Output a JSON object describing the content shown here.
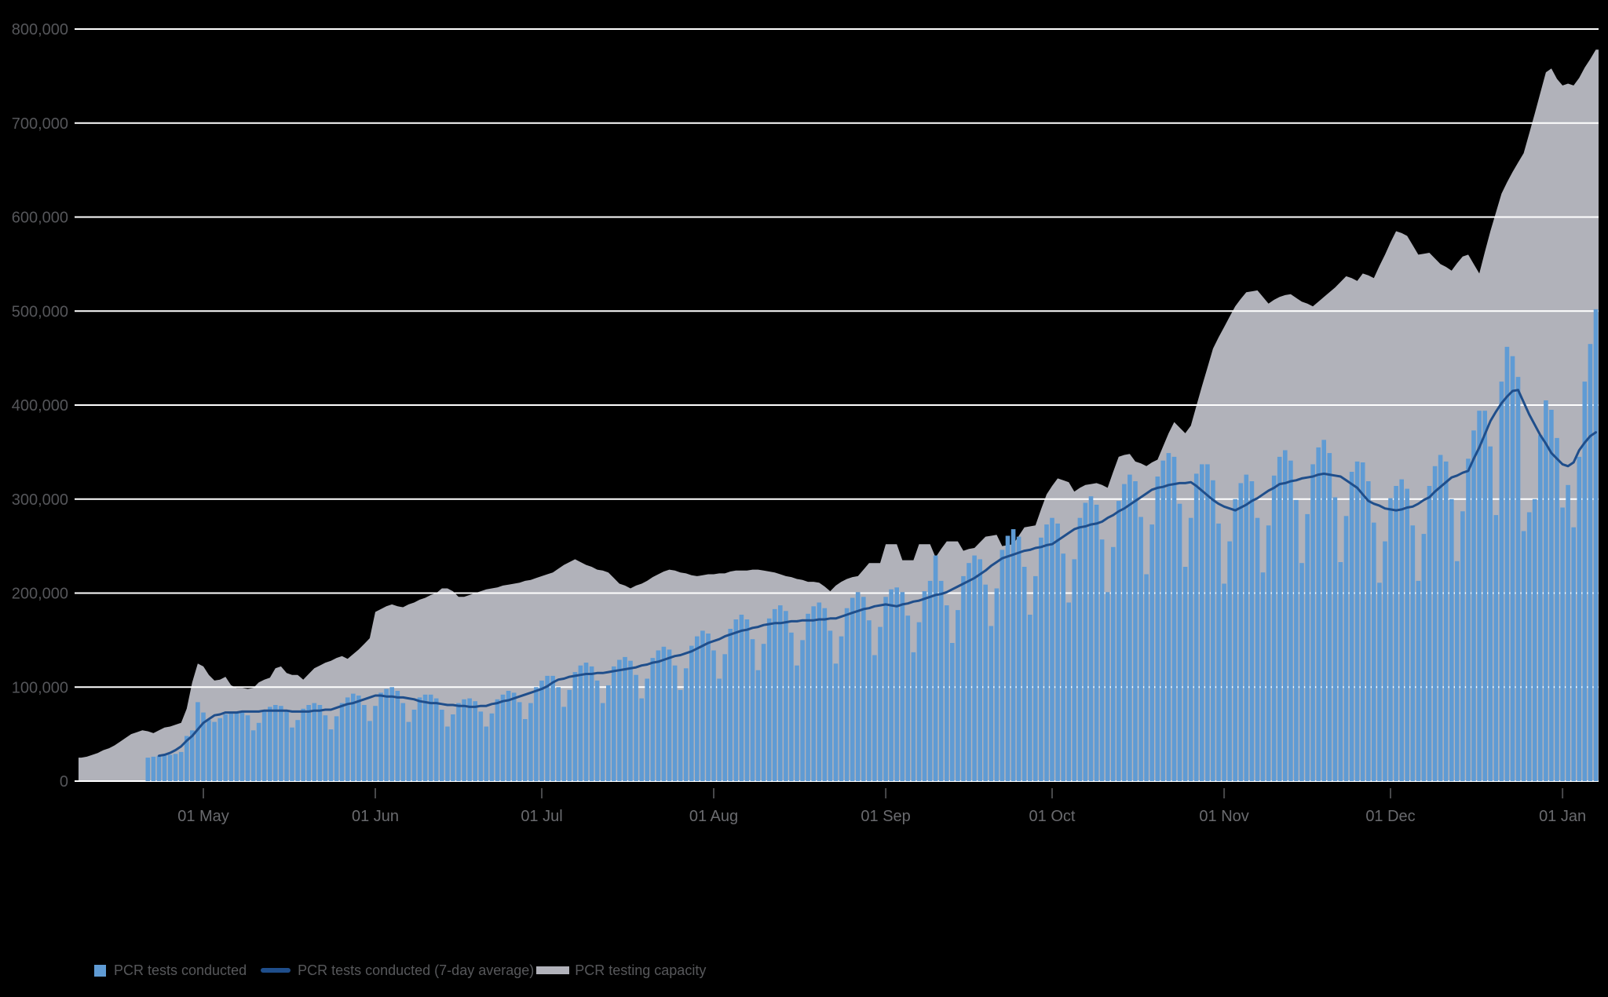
{
  "chart": {
    "colors": {
      "background": "#000000",
      "grid": "#ffffff",
      "y_axis_label": "#55565a",
      "x_axis_label": "#6a6b6f",
      "x_tick_mark": "#47484a",
      "legend_text": "#57585b",
      "bar": "#5f9bd4",
      "line": "#1f4e8b",
      "area": "#b1b2ba"
    },
    "legend": {
      "position": "bottom-left",
      "items": [
        "PCR tests conducted",
        "PCR tests conducted (7-day average)",
        "PCR testing capacity"
      ]
    }
  },
  "chart_data": {
    "type": "combo",
    "subtypes": [
      "bar",
      "line",
      "area"
    ],
    "title": "",
    "xlabel": "",
    "ylabel": "",
    "ylim": [
      0,
      800000
    ],
    "grid": "horizontal-white",
    "x_encoding": {
      "start_date": "2020-04-09",
      "step_days": 1,
      "count": 274,
      "end_date": "2021-01-07"
    },
    "y_ticks": [
      {
        "v": 0,
        "label": "0"
      },
      {
        "v": 100000,
        "label": "100,000"
      },
      {
        "v": 200000,
        "label": "200,000"
      },
      {
        "v": 300000,
        "label": "300,000"
      },
      {
        "v": 400000,
        "label": "400,000"
      },
      {
        "v": 500000,
        "label": "500,000"
      },
      {
        "v": 600000,
        "label": "600,000"
      },
      {
        "v": 700000,
        "label": "700,000"
      },
      {
        "v": 800000,
        "label": "800,000"
      }
    ],
    "x_ticks": [
      {
        "day": 22,
        "label": "01 May"
      },
      {
        "day": 53,
        "label": "01 Jun"
      },
      {
        "day": 83,
        "label": "01 Jul"
      },
      {
        "day": 114,
        "label": "01 Aug"
      },
      {
        "day": 145,
        "label": "01 Sep"
      },
      {
        "day": 175,
        "label": "01 Oct"
      },
      {
        "day": 206,
        "label": "01 Nov"
      },
      {
        "day": 236,
        "label": "01 Dec"
      },
      {
        "day": 267,
        "label": "01 Jan"
      }
    ],
    "series": [
      {
        "name": "PCR tests conducted",
        "type": "bar",
        "color": "#5f9bd4",
        "values": [
          null,
          null,
          null,
          null,
          null,
          null,
          null,
          null,
          null,
          null,
          null,
          null,
          25000,
          26000,
          27000,
          28000,
          28000,
          29000,
          31000,
          48000,
          54000,
          84000,
          73000,
          65000,
          63000,
          67000,
          71000,
          73000,
          74000,
          73000,
          70000,
          54000,
          62000,
          75000,
          79000,
          81000,
          80000,
          75000,
          57000,
          65000,
          77000,
          81000,
          83000,
          81000,
          70000,
          55000,
          69000,
          83000,
          89000,
          93000,
          91000,
          81000,
          64000,
          80000,
          94000,
          98000,
          100000,
          96000,
          83000,
          63000,
          76000,
          89000,
          92000,
          92000,
          88000,
          76000,
          58000,
          71000,
          83000,
          87000,
          88000,
          85000,
          74000,
          58000,
          72000,
          87000,
          92000,
          96000,
          94000,
          84000,
          66000,
          83000,
          100000,
          107000,
          112000,
          112000,
          100000,
          79000,
          97000,
          116000,
          123000,
          126000,
          122000,
          107000,
          83000,
          102000,
          122000,
          129000,
          132000,
          128000,
          113000,
          88000,
          109000,
          131000,
          139000,
          143000,
          140000,
          123000,
          97000,
          120000,
          144000,
          154000,
          160000,
          157000,
          139000,
          109000,
          135000,
          162000,
          172000,
          177000,
          172000,
          151000,
          118000,
          146000,
          173000,
          183000,
          187000,
          181000,
          158000,
          123000,
          150000,
          178000,
          186000,
          190000,
          184000,
          160000,
          125000,
          154000,
          184000,
          195000,
          201000,
          196000,
          171000,
          134000,
          164000,
          196000,
          204000,
          206000,
          201000,
          176000,
          137000,
          169000,
          202000,
          213000,
          240000,
          213000,
          187000,
          147000,
          182000,
          218000,
          232000,
          240000,
          236000,
          209000,
          165000,
          205000,
          246000,
          261000,
          268000,
          260000,
          228000,
          177000,
          218000,
          259000,
          273000,
          280000,
          274000,
          242000,
          190000,
          236000,
          280000,
          296000,
          303000,
          294000,
          257000,
          201000,
          249000,
          298000,
          316000,
          326000,
          319000,
          281000,
          220000,
          273000,
          324000,
          341000,
          349000,
          345000,
          295000,
          228000,
          280000,
          327000,
          337000,
          337000,
          320000,
          274000,
          210000,
          255000,
          300000,
          317000,
          326000,
          319000,
          280000,
          222000,
          272000,
          325000,
          345000,
          352000,
          341000,
          299000,
          232000,
          284000,
          337000,
          355000,
          363000,
          349000,
          302000,
          233000,
          282000,
          329000,
          340000,
          339000,
          319000,
          275000,
          211000,
          255000,
          301000,
          314000,
          321000,
          311000,
          272000,
          213000,
          263000,
          314000,
          335000,
          347000,
          340000,
          300000,
          234000,
          287000,
          343000,
          373000,
          394000,
          394000,
          356000,
          283000,
          425000,
          462000,
          452000,
          430000,
          266000,
          286000,
          300000,
          368000,
          405000,
          395000,
          365000,
          291000,
          315000,
          270000,
          345000,
          425000,
          465000,
          502000
        ]
      },
      {
        "name": "PCR tests conducted (7-day average)",
        "type": "line",
        "color": "#1f4e8b",
        "values": [
          null,
          null,
          null,
          null,
          null,
          null,
          null,
          null,
          null,
          null,
          null,
          null,
          null,
          null,
          27000,
          28000,
          30000,
          33000,
          37000,
          43000,
          48000,
          55000,
          62000,
          66000,
          70000,
          71000,
          73000,
          73000,
          73000,
          74000,
          74000,
          74000,
          74000,
          75000,
          75000,
          75000,
          75000,
          75000,
          74000,
          74000,
          74000,
          74000,
          75000,
          75000,
          76000,
          76000,
          78000,
          80000,
          82000,
          83000,
          85000,
          87000,
          89000,
          91000,
          91000,
          90000,
          90000,
          89000,
          89000,
          88000,
          87000,
          85000,
          84000,
          83000,
          83000,
          82000,
          81000,
          81000,
          80000,
          80000,
          79000,
          79000,
          80000,
          80000,
          82000,
          83000,
          85000,
          86000,
          88000,
          90000,
          92000,
          94000,
          96000,
          98000,
          101000,
          105000,
          108000,
          109000,
          111000,
          112000,
          113000,
          114000,
          114000,
          115000,
          115000,
          116000,
          117000,
          118000,
          119000,
          120000,
          121000,
          123000,
          124000,
          126000,
          127000,
          129000,
          131000,
          133000,
          134000,
          136000,
          138000,
          141000,
          144000,
          147000,
          149000,
          151000,
          154000,
          156000,
          158000,
          160000,
          161000,
          163000,
          164000,
          166000,
          167000,
          168000,
          168000,
          169000,
          170000,
          170000,
          171000,
          171000,
          171000,
          172000,
          172000,
          173000,
          173000,
          175000,
          177000,
          179000,
          181000,
          183000,
          184000,
          186000,
          187000,
          188000,
          187000,
          186000,
          188000,
          189000,
          191000,
          192000,
          194000,
          196000,
          198000,
          199000,
          201000,
          204000,
          207000,
          210000,
          213000,
          216000,
          220000,
          224000,
          229000,
          233000,
          237000,
          239000,
          241000,
          243000,
          245000,
          246000,
          248000,
          249000,
          251000,
          252000,
          256000,
          260000,
          264000,
          268000,
          270000,
          271000,
          273000,
          274000,
          276000,
          280000,
          283000,
          287000,
          290000,
          294000,
          298000,
          302000,
          306000,
          310000,
          312000,
          313000,
          315000,
          316000,
          317000,
          317000,
          318000,
          314000,
          309000,
          304000,
          299000,
          295000,
          292000,
          290000,
          288000,
          291000,
          294000,
          298000,
          301000,
          305000,
          309000,
          312000,
          316000,
          317000,
          319000,
          320000,
          322000,
          323000,
          324000,
          326000,
          327000,
          326000,
          325000,
          324000,
          320000,
          316000,
          312000,
          305000,
          298000,
          295000,
          293000,
          290000,
          289000,
          288000,
          289000,
          291000,
          292000,
          295000,
          299000,
          302000,
          308000,
          313000,
          318000,
          323000,
          325000,
          328000,
          330000,
          343000,
          355000,
          369000,
          383000,
          393000,
          402000,
          409000,
          415000,
          416000,
          403000,
          390000,
          379000,
          368000,
          359000,
          349000,
          343000,
          337000,
          335000,
          339000,
          352000,
          360000,
          367000,
          371000
        ]
      },
      {
        "name": "PCR testing capacity",
        "type": "area",
        "color": "#b1b2ba",
        "values": [
          25000,
          26000,
          28000,
          30000,
          33000,
          35000,
          38000,
          42000,
          46000,
          50000,
          52000,
          54000,
          53000,
          51000,
          54000,
          57000,
          58000,
          60000,
          62000,
          77000,
          105000,
          125000,
          122000,
          113000,
          107000,
          108000,
          111000,
          102000,
          99000,
          99000,
          98000,
          99000,
          105000,
          108000,
          110000,
          120000,
          122000,
          115000,
          113000,
          113000,
          108000,
          114000,
          120000,
          123000,
          126000,
          128000,
          131000,
          133000,
          130000,
          135000,
          140000,
          146000,
          152000,
          180000,
          183000,
          186000,
          188000,
          186000,
          185000,
          188000,
          190000,
          193000,
          195000,
          198000,
          200000,
          205000,
          205000,
          202000,
          196000,
          196000,
          198000,
          200000,
          202000,
          204000,
          205000,
          206000,
          208000,
          209000,
          210000,
          211000,
          213000,
          214000,
          216000,
          218000,
          220000,
          222000,
          226000,
          230000,
          233000,
          236000,
          233000,
          230000,
          228000,
          225000,
          224000,
          222000,
          216000,
          210000,
          208000,
          205000,
          208000,
          210000,
          213000,
          217000,
          220000,
          223000,
          225000,
          224000,
          222000,
          221000,
          219000,
          218000,
          219000,
          220000,
          220000,
          221000,
          221000,
          223000,
          224000,
          224000,
          224000,
          225000,
          225000,
          224000,
          223000,
          222000,
          220000,
          218000,
          217000,
          215000,
          214000,
          212000,
          212000,
          211000,
          207000,
          202000,
          208000,
          212000,
          215000,
          217000,
          218000,
          225000,
          232000,
          232000,
          232000,
          252000,
          252000,
          252000,
          235000,
          235000,
          235000,
          252000,
          252000,
          252000,
          238000,
          247000,
          255000,
          255000,
          255000,
          245000,
          247000,
          248000,
          254000,
          260000,
          261000,
          262000,
          250000,
          251000,
          252000,
          261000,
          270000,
          271000,
          272000,
          289000,
          305000,
          314000,
          322000,
          320000,
          318000,
          308000,
          312000,
          315000,
          316000,
          317000,
          315000,
          312000,
          329000,
          345000,
          347000,
          348000,
          340000,
          338000,
          335000,
          339000,
          342000,
          356000,
          370000,
          382000,
          376000,
          370000,
          378000,
          399000,
          420000,
          440000,
          460000,
          472000,
          483000,
          494000,
          505000,
          513000,
          520000,
          521000,
          522000,
          515000,
          508000,
          512000,
          515000,
          517000,
          518000,
          514000,
          510000,
          508000,
          505000,
          510000,
          515000,
          520000,
          525000,
          531000,
          537000,
          535000,
          532000,
          540000,
          538000,
          535000,
          548000,
          560000,
          573000,
          585000,
          583000,
          580000,
          570000,
          560000,
          561000,
          562000,
          556000,
          550000,
          547000,
          543000,
          551000,
          558000,
          560000,
          550000,
          540000,
          563000,
          585000,
          605000,
          625000,
          637000,
          648000,
          658000,
          668000,
          689000,
          710000,
          732000,
          754000,
          758000,
          747000,
          740000,
          742000,
          740000,
          748000,
          759000,
          768000,
          778000
        ]
      }
    ]
  }
}
